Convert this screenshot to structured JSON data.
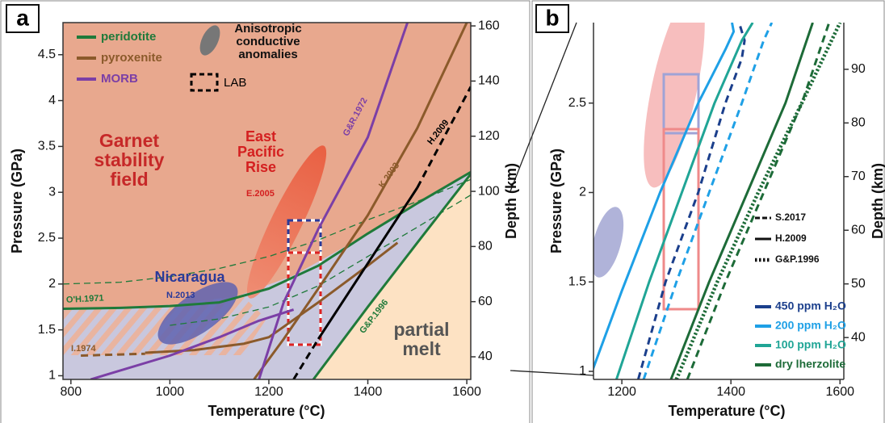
{
  "chart_data": [
    {
      "type": "phase-diagram",
      "panel": "a",
      "x_label": "Temperature (°C)",
      "y_label": "Pressure (GPa)",
      "y2_label": "Depth (km)",
      "xlim": [
        784,
        1608
      ],
      "xticks": [
        800,
        1000,
        1200,
        1400,
        1600
      ],
      "ylim": [
        0.96,
        4.85
      ],
      "yticks": [
        1,
        1.5,
        2,
        2.5,
        3,
        3.5,
        4,
        4.5
      ],
      "y2lim": [
        31.8,
        161.2
      ],
      "y2ticks": [
        40,
        60,
        80,
        100,
        120,
        140,
        160
      ],
      "series": [
        {
          "name": "peridotite",
          "color": "#1f7a3a",
          "curves": [
            {
              "label": "O'H.1971",
              "style": "solid",
              "x": [
                784,
                900,
                1000,
                1100,
                1200,
                1300,
                1400,
                1500,
                1608
              ],
              "values": [
                1.73,
                1.74,
                1.76,
                1.8,
                1.95,
                2.2,
                2.55,
                2.88,
                3.22
              ]
            },
            {
              "label": "G&P.1996",
              "style": "solid",
              "x": [
                1290,
                1400,
                1500,
                1608
              ],
              "values": [
                0.96,
                1.75,
                2.45,
                3.2
              ]
            },
            {
              "style": "thin-dashed",
              "x": [
                784,
                900,
                1000,
                1100,
                1200,
                1300,
                1400,
                1500,
                1608
              ],
              "values": [
                2.0,
                2.02,
                2.08,
                2.17,
                2.3,
                2.48,
                2.7,
                2.9,
                3.14
              ]
            },
            {
              "style": "thin-dashed",
              "x": [
                1000,
                1100,
                1200,
                1300,
                1400,
                1500,
                1608
              ],
              "values": [
                1.55,
                1.62,
                1.75,
                1.98,
                2.3,
                2.62,
                2.97
              ]
            }
          ]
        },
        {
          "name": "pyroxenite",
          "color": "#8b5a2b",
          "curves": [
            {
              "style": "dashed",
              "x": [
                820,
                950
              ],
              "values": [
                1.22,
                1.24
              ]
            },
            {
              "label": "I.1974",
              "style": "solid",
              "x": [
                950,
                1050,
                1150,
                1200,
                1300,
                1400,
                1460
              ],
              "values": [
                1.25,
                1.28,
                1.35,
                1.42,
                1.8,
                2.2,
                2.45
              ]
            },
            {
              "label": "K.2003",
              "style": "solid",
              "x": [
                1170,
                1230,
                1300,
                1400,
                1500,
                1600
              ],
              "values": [
                0.96,
                1.4,
                1.95,
                2.75,
                3.7,
                4.85
              ]
            }
          ]
        },
        {
          "name": "MORB",
          "color": "#7b3fa6",
          "curves": [
            {
              "style": "solid",
              "x": [
                840,
                1000,
                1100,
                1180,
                1250
              ],
              "values": [
                0.96,
                1.22,
                1.42,
                1.6,
                1.72
              ]
            },
            {
              "label": "G&R.1972",
              "style": "solid",
              "x": [
                1180,
                1230,
                1300,
                1400,
                1480
              ],
              "values": [
                0.96,
                1.8,
                2.6,
                3.6,
                4.85
              ]
            }
          ]
        },
        {
          "color": "#000000",
          "curves": [
            {
              "style": "dashed",
              "x": [
                1250,
                1300
              ],
              "values": [
                0.96,
                1.4
              ]
            },
            {
              "label": "H.2009",
              "style": "solid",
              "x": [
                1300,
                1500
              ],
              "values": [
                1.4,
                3.05
              ]
            },
            {
              "style": "dashed",
              "x": [
                1500,
                1608
              ],
              "values": [
                3.05,
                4.15
              ]
            }
          ]
        }
      ],
      "legend_extras": [
        "Anisotropic conductive anomalies",
        "LAB"
      ],
      "annotations": [
        "Garnet stability field",
        "East Pacific Rise",
        "E.2005",
        "Nicaragua",
        "N.2013",
        "partial melt"
      ]
    },
    {
      "type": "phase-diagram",
      "panel": "b",
      "x_label": "Temperature (°C)",
      "y_label": "Pressure (GPa)",
      "y2_label": "Depth (km)",
      "xlim": [
        1148,
        1607
      ],
      "xticks": [
        1200,
        1400,
        1600
      ],
      "ylim": [
        0.955,
        2.95
      ],
      "yticks": [
        1,
        1.5,
        2,
        2.5
      ],
      "y2lim": [
        32.2,
        98.7
      ],
      "y2ticks": [
        40,
        50,
        60,
        70,
        80,
        90
      ],
      "line_styles": [
        {
          "name": "S.2017",
          "style": "dashed"
        },
        {
          "name": "H.2009",
          "style": "solid"
        },
        {
          "name": "G&P.1996",
          "style": "dotted"
        }
      ],
      "series": [
        {
          "name": "450 ppm H₂O",
          "color": "#1b3f8c",
          "curves": [
            {
              "style": "dashed",
              "x": [
                1230,
                1280,
                1340,
                1390,
                1420,
                1425,
                1415
              ],
              "values": [
                0.955,
                1.5,
                2.0,
                2.5,
                2.75,
                2.85,
                2.95
              ]
            }
          ]
        },
        {
          "name": "200 ppm H₂O",
          "color": "#1ea0e6",
          "curves": [
            {
              "style": "solid",
              "x": [
                1140,
                1200,
                1270,
                1340,
                1390,
                1405,
                1402
              ],
              "values": [
                0.955,
                1.45,
                2.0,
                2.5,
                2.8,
                2.9,
                2.95
              ]
            },
            {
              "style": "dashed",
              "x": [
                1240,
                1300,
                1360,
                1420,
                1460,
                1475
              ],
              "values": [
                0.955,
                1.5,
                2.0,
                2.5,
                2.85,
                2.95
              ]
            }
          ]
        },
        {
          "name": "100 ppm H₂O",
          "color": "#20a596",
          "curves": [
            {
              "style": "solid",
              "x": [
                1190,
                1250,
                1310,
                1370,
                1420,
                1440
              ],
              "values": [
                0.955,
                1.5,
                2.0,
                2.5,
                2.85,
                2.95
              ]
            }
          ]
        },
        {
          "name": "dry lherzolite",
          "color": "#1d6b38",
          "curves": [
            {
              "style": "solid",
              "x": [
                1290,
                1360,
                1430,
                1500,
                1550
              ],
              "values": [
                0.955,
                1.5,
                2.0,
                2.5,
                2.95
              ]
            },
            {
              "style": "dashed",
              "x": [
                1320,
                1390,
                1460,
                1530,
                1580
              ],
              "values": [
                0.955,
                1.5,
                2.0,
                2.5,
                2.95
              ]
            },
            {
              "style": "dotted",
              "x": [
                1300,
                1375,
                1450,
                1530,
                1600
              ],
              "values": [
                0.955,
                1.5,
                2.0,
                2.5,
                2.95
              ]
            }
          ]
        }
      ]
    }
  ]
}
